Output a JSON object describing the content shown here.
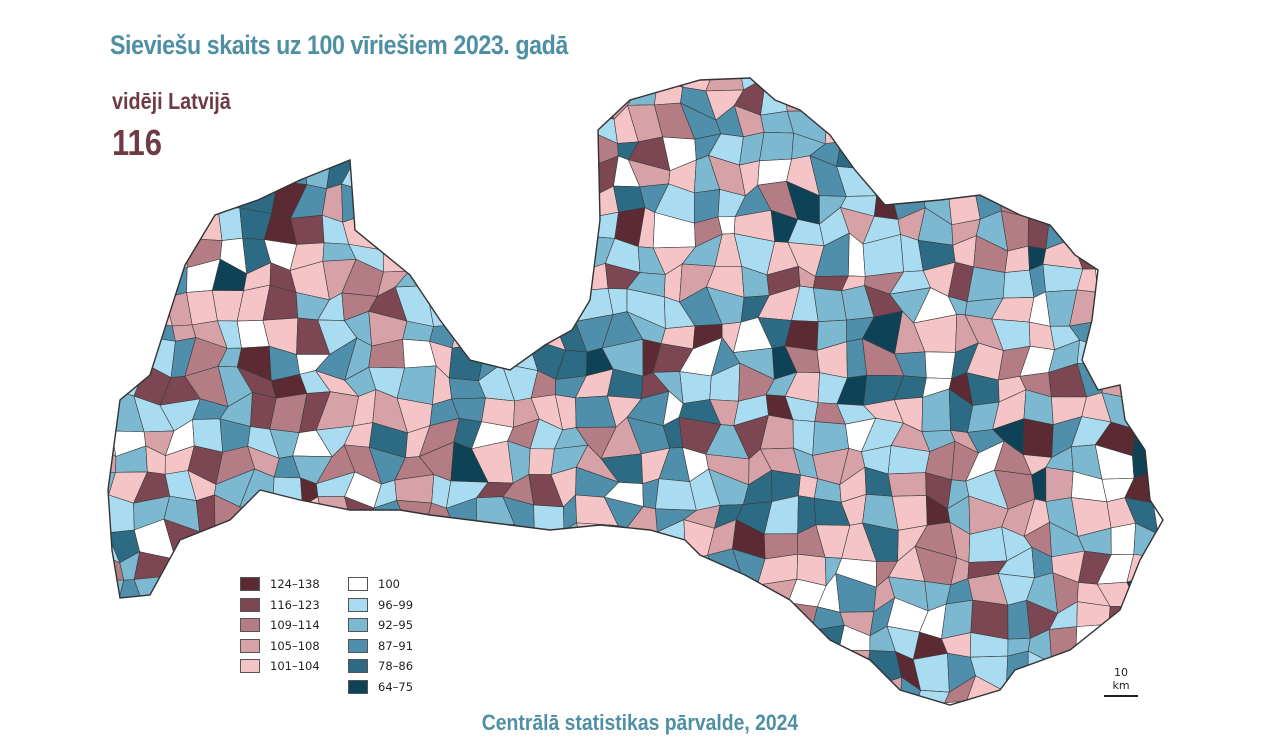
{
  "title": "Sieviešu skaits uz 100 vīriešiem 2023. gadā",
  "average": {
    "label": "vidēji Latvijā",
    "value": "116"
  },
  "source": "Centrālā statistikas pārvalde, 2024",
  "scale_bar": "10 km",
  "legend": {
    "left": [
      {
        "label": "124–138",
        "color": "#5b2a33"
      },
      {
        "label": "116–123",
        "color": "#7d4653"
      },
      {
        "label": "109–114",
        "color": "#b47c84"
      },
      {
        "label": "105–108",
        "color": "#d6a1a7"
      },
      {
        "label": "101–104",
        "color": "#f5c4c6"
      }
    ],
    "right": [
      {
        "label": "100",
        "color": "#ffffff"
      },
      {
        "label": "96–99",
        "color": "#a9dcf0"
      },
      {
        "label": "92–95",
        "color": "#7db8d1"
      },
      {
        "label": "87–91",
        "color": "#4f8fab"
      },
      {
        "label": "78–86",
        "color": "#2d6b84"
      },
      {
        "label": "64–75",
        "color": "#0e4257"
      }
    ]
  }
}
